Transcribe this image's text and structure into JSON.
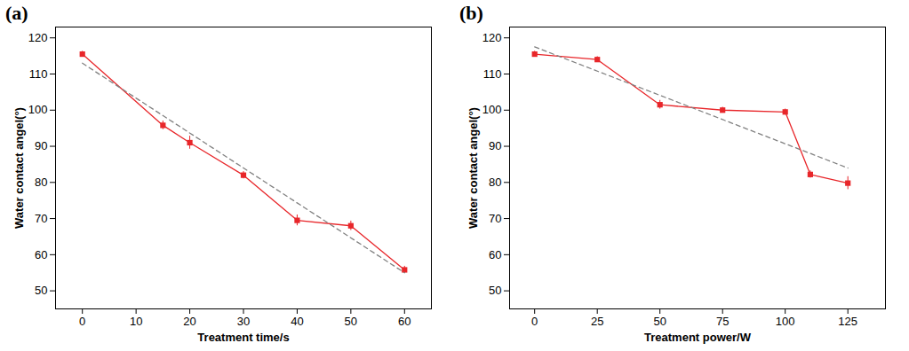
{
  "chart_data": [
    {
      "type": "line",
      "title": "(a)",
      "x_label": "Treatment time/s",
      "y_label": "Water contact angel(°)",
      "xlim": [
        -5,
        65
      ],
      "xticks": [
        0,
        10,
        20,
        30,
        40,
        50,
        60
      ],
      "ylim": [
        45,
        123
      ],
      "yticks": [
        50,
        60,
        70,
        80,
        90,
        100,
        110,
        120
      ],
      "grid": false,
      "series": [
        {
          "x": [
            0,
            15,
            20,
            30,
            40,
            50,
            60
          ],
          "values": [
            115.5,
            95.8,
            91,
            82,
            69.5,
            68,
            55.8
          ],
          "errors": [
            0.8,
            1.2,
            1.8,
            1.0,
            1.5,
            1.3,
            1.0
          ],
          "color": "#e8262a",
          "marker": "square",
          "line_style": "solid"
        },
        {
          "x": [
            0,
            60
          ],
          "values": [
            113,
            55
          ],
          "color": "#808080",
          "line_style": "dashed"
        }
      ]
    },
    {
      "type": "line",
      "title": "(b)",
      "x_label": "Treatment power/W",
      "y_label": "Water contact angel(°)",
      "xlim": [
        -10,
        140
      ],
      "xticks": [
        0,
        25,
        50,
        75,
        100,
        125
      ],
      "ylim": [
        45,
        123
      ],
      "yticks": [
        50,
        60,
        70,
        80,
        90,
        100,
        110,
        120
      ],
      "grid": false,
      "series": [
        {
          "x": [
            0,
            25,
            50,
            75,
            100,
            110,
            125
          ],
          "values": [
            115.5,
            114,
            101.5,
            100,
            99.5,
            82.2,
            79.8
          ],
          "errors": [
            0.8,
            0.8,
            1.2,
            0.8,
            0.8,
            1.0,
            1.8
          ],
          "color": "#e8262a",
          "marker": "square",
          "line_style": "solid"
        },
        {
          "x": [
            0,
            125
          ],
          "values": [
            117.5,
            84
          ],
          "color": "#808080",
          "line_style": "dashed"
        }
      ]
    }
  ]
}
